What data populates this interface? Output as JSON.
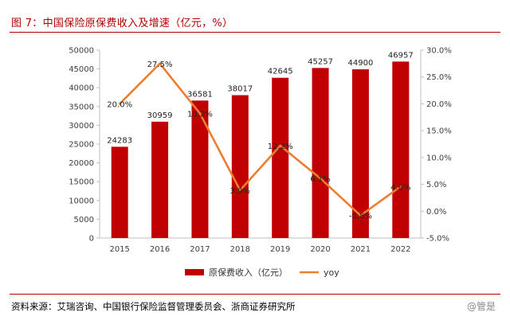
{
  "header": {
    "title": "图 7：中国保险原保费收入及增速（亿元，%）"
  },
  "footer": {
    "source": "资料来源：艾瑞咨询、中国银行保险监督管理委员会、浙商证券研究所",
    "watermark": "@管是"
  },
  "chart_data": {
    "type": "bar+line",
    "categories": [
      "2015",
      "2016",
      "2017",
      "2018",
      "2019",
      "2020",
      "2021",
      "2022"
    ],
    "series": [
      {
        "name": "原保费收入（亿元）",
        "type": "bar",
        "axis": "left",
        "color": "#c00000",
        "values": [
          24283,
          30959,
          36581,
          38017,
          42645,
          45257,
          44900,
          46957
        ],
        "labels": [
          "24283",
          "30959",
          "36581",
          "38017",
          "42645",
          "45257",
          "44900",
          "46957"
        ]
      },
      {
        "name": "yoy",
        "type": "line",
        "axis": "right",
        "color": "#ed7d31",
        "values": [
          20.0,
          27.5,
          18.2,
          3.9,
          12.2,
          6.1,
          -0.8,
          4.6
        ],
        "labels": [
          "20.0%",
          "27.5%",
          "18.2%",
          "3.9%",
          "12.2%",
          "6.1%",
          "-0.8%",
          "4.6%"
        ]
      }
    ],
    "y_left": {
      "min": 0,
      "max": 50000,
      "ticks": [
        "0",
        "5000",
        "10000",
        "15000",
        "20000",
        "25000",
        "30000",
        "35000",
        "40000",
        "45000",
        "50000"
      ]
    },
    "y_right": {
      "min": -5,
      "max": 30,
      "ticks": [
        "-5.0%",
        "0.0%",
        "5.0%",
        "10.0%",
        "15.0%",
        "20.0%",
        "25.0%",
        "30.0%"
      ]
    },
    "legend": {
      "position": "bottom"
    }
  }
}
